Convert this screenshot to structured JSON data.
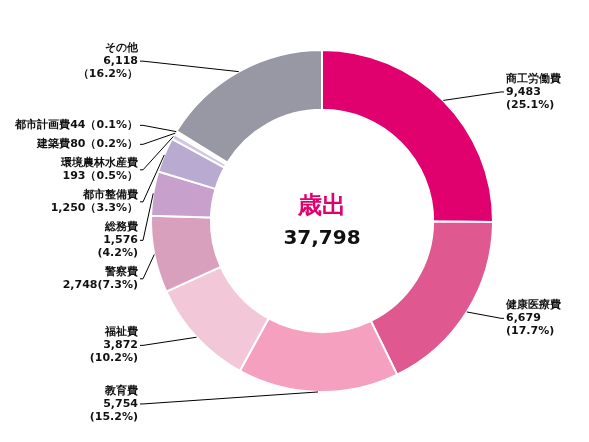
{
  "chart_data": {
    "type": "doughnut",
    "title": "歳出",
    "subtitle": "37,798",
    "categories": [
      "商工労働費",
      "健康医療費",
      "教育費",
      "福祉費",
      "警察費",
      "総務費",
      "都市整備費",
      "環境農林水産費",
      "建築費",
      "都市計画費",
      "その他"
    ],
    "values": [
      9483,
      6679,
      5754,
      3872,
      2748,
      1576,
      1250,
      193,
      80,
      44,
      6118
    ],
    "colors": [
      "#e0006e",
      "#e05890",
      "#f5a0be",
      "#f2c8d8",
      "#d8a0bc",
      "#c8a0cc",
      "#b8aad0",
      "#d0c8e0",
      "#eeeef6",
      "#f4f4f8",
      "#9898a4"
    ],
    "annotations": [
      "商工労働費\n9,483\n(25.1%)",
      "健康医療費\n6,679\n(17.7%)",
      "教育費\n5,754\n(15.2%)",
      "福祉費\n3,872\n(10.2%)",
      "警察費\n2,748(7.3%)",
      "総務費\n1,576\n(4.2%)",
      "都市整備費\n1,250（3.3%）",
      "環境農林水産費\n193（0.5%）",
      "建築費80（0.2%）",
      "都市計画費44（0.1%）",
      "その他\n6,118\n（16.2%）"
    ]
  }
}
